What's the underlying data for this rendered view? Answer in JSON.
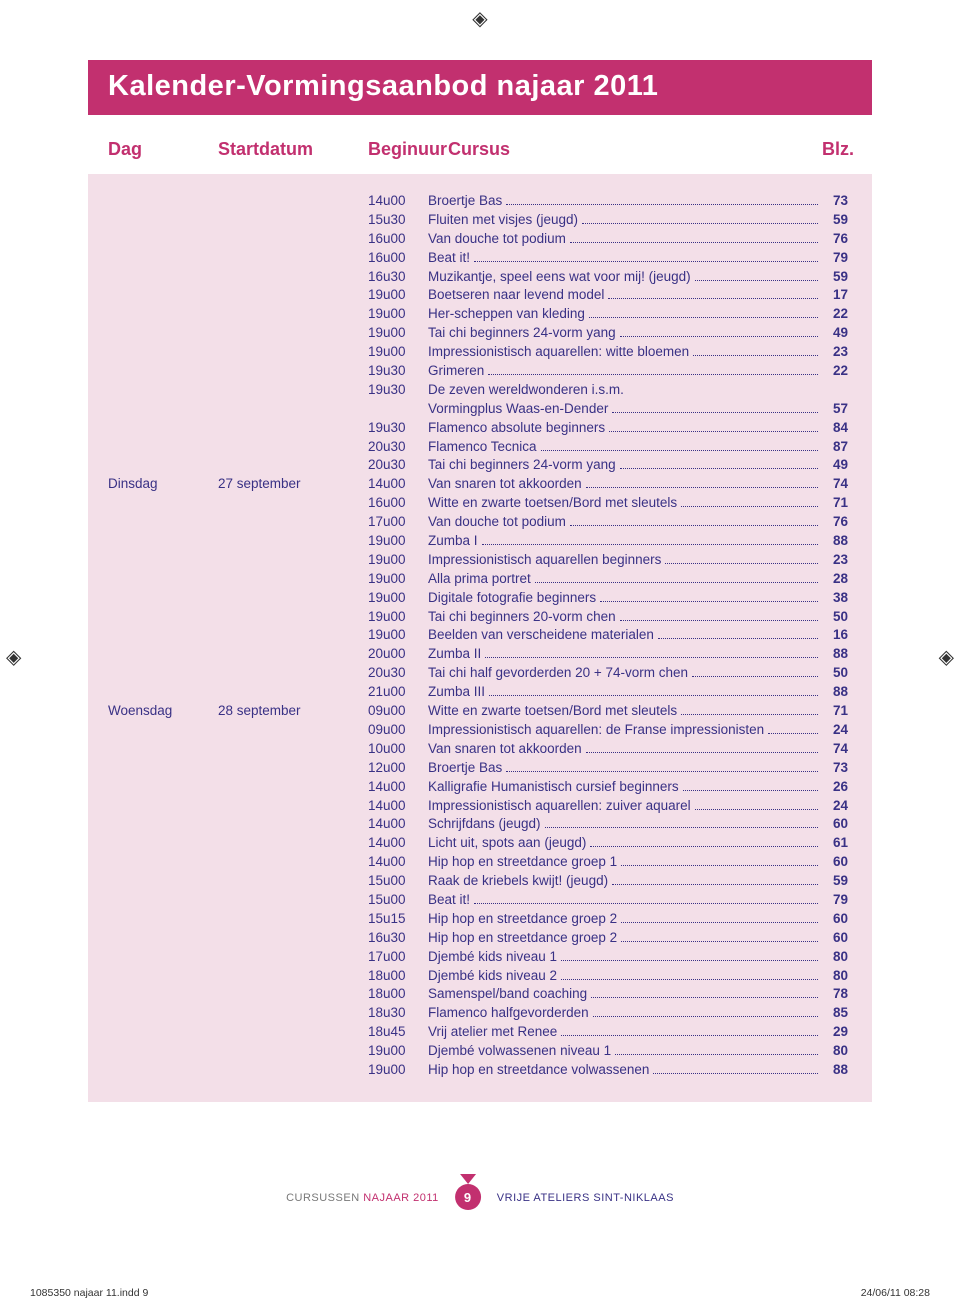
{
  "title": "Kalender-Vormingsaanbod najaar 2011",
  "columns": {
    "dag": "Dag",
    "startdatum": "Startdatum",
    "beginuur": "Beginuur",
    "cursus": "Cursus",
    "blz": "Blz."
  },
  "rows": [
    {
      "day": "",
      "date": "",
      "time": "14u00",
      "course": "Broertje Bas",
      "page": "73"
    },
    {
      "day": "",
      "date": "",
      "time": "15u30",
      "course": "Fluiten met visjes (jeugd)",
      "page": "59"
    },
    {
      "day": "",
      "date": "",
      "time": "16u00",
      "course": "Van douche tot podium",
      "page": "76"
    },
    {
      "day": "",
      "date": "",
      "time": "16u00",
      "course": "Beat it!",
      "page": "79"
    },
    {
      "day": "",
      "date": "",
      "time": "16u30",
      "course": "Muzikantje, speel eens wat voor mij! (jeugd)",
      "page": "59"
    },
    {
      "day": "",
      "date": "",
      "time": "19u00",
      "course": "Boetseren naar levend model",
      "page": "17"
    },
    {
      "day": "",
      "date": "",
      "time": "19u00",
      "course": "Her-scheppen van kleding",
      "page": "22"
    },
    {
      "day": "",
      "date": "",
      "time": "19u00",
      "course": "Tai chi beginners 24-vorm yang",
      "page": "49"
    },
    {
      "day": "",
      "date": "",
      "time": "19u00",
      "course": "Impressionistisch aquarellen: witte bloemen",
      "page": "23"
    },
    {
      "day": "",
      "date": "",
      "time": "19u30",
      "course": "Grimeren",
      "page": "22"
    },
    {
      "day": "",
      "date": "",
      "time": "19u30",
      "course": "De zeven wereldwonderen i.s.m.",
      "no_page": true
    },
    {
      "day": "",
      "date": "",
      "time": "",
      "course": "Vormingplus Waas-en-Dender",
      "page": "57",
      "cont": true
    },
    {
      "day": "",
      "date": "",
      "time": "19u30",
      "course": "Flamenco absolute beginners",
      "page": "84"
    },
    {
      "day": "",
      "date": "",
      "time": "20u30",
      "course": "Flamenco Tecnica",
      "page": "87"
    },
    {
      "day": "",
      "date": "",
      "time": "20u30",
      "course": "Tai chi beginners 24-vorm yang",
      "page": "49"
    },
    {
      "day": "Dinsdag",
      "date": "27 september",
      "time": "14u00",
      "course": "Van snaren tot akkoorden",
      "page": "74"
    },
    {
      "day": "",
      "date": "",
      "time": "16u00",
      "course": "Witte en zwarte toetsen/Bord met sleutels",
      "page": "71"
    },
    {
      "day": "",
      "date": "",
      "time": "17u00",
      "course": "Van douche tot podium",
      "page": "76"
    },
    {
      "day": "",
      "date": "",
      "time": "19u00",
      "course": "Zumba I",
      "page": "88"
    },
    {
      "day": "",
      "date": "",
      "time": "19u00",
      "course": "Impressionistisch aquarellen beginners",
      "page": "23"
    },
    {
      "day": "",
      "date": "",
      "time": "19u00",
      "course": "Alla prima portret",
      "page": "28"
    },
    {
      "day": "",
      "date": "",
      "time": "19u00",
      "course": "Digitale fotografie beginners",
      "page": "38"
    },
    {
      "day": "",
      "date": "",
      "time": "19u00",
      "course": "Tai chi beginners 20-vorm chen",
      "page": "50"
    },
    {
      "day": "",
      "date": "",
      "time": "19u00",
      "course": "Beelden van verscheidene materialen",
      "page": "16"
    },
    {
      "day": "",
      "date": "",
      "time": "20u00",
      "course": "Zumba II",
      "page": "88"
    },
    {
      "day": "",
      "date": "",
      "time": "20u30",
      "course": "Tai chi half gevorderden 20 + 74-vorm chen",
      "page": "50"
    },
    {
      "day": "",
      "date": "",
      "time": "21u00",
      "course": "Zumba III",
      "page": "88"
    },
    {
      "day": "Woensdag",
      "date": "28 september",
      "time": "09u00",
      "course": "Witte en zwarte toetsen/Bord met sleutels",
      "page": "71"
    },
    {
      "day": "",
      "date": "",
      "time": "09u00",
      "course": "Impressionistisch aquarellen: de Franse impressionisten",
      "page": "24"
    },
    {
      "day": "",
      "date": "",
      "time": "10u00",
      "course": "Van snaren tot akkoorden",
      "page": "74"
    },
    {
      "day": "",
      "date": "",
      "time": "12u00",
      "course": "Broertje Bas",
      "page": "73"
    },
    {
      "day": "",
      "date": "",
      "time": "14u00",
      "course": "Kalligrafie Humanistisch cursief beginners",
      "page": "26"
    },
    {
      "day": "",
      "date": "",
      "time": "14u00",
      "course": "Impressionistisch aquarellen: zuiver aquarel",
      "page": "24"
    },
    {
      "day": "",
      "date": "",
      "time": "14u00",
      "course": "Schrijfdans (jeugd)",
      "page": "60"
    },
    {
      "day": "",
      "date": "",
      "time": "14u00",
      "course": "Licht uit, spots aan (jeugd)",
      "page": "61"
    },
    {
      "day": "",
      "date": "",
      "time": "14u00",
      "course": "Hip hop en streetdance groep 1",
      "page": "60"
    },
    {
      "day": "",
      "date": "",
      "time": "15u00",
      "course": "Raak de kriebels kwijt! (jeugd)",
      "page": "59"
    },
    {
      "day": "",
      "date": "",
      "time": "15u00",
      "course": "Beat it!",
      "page": "79"
    },
    {
      "day": "",
      "date": "",
      "time": "15u15",
      "course": "Hip hop en streetdance groep 2",
      "page": "60"
    },
    {
      "day": "",
      "date": "",
      "time": "16u30",
      "course": "Hip hop en streetdance groep 2",
      "page": "60"
    },
    {
      "day": "",
      "date": "",
      "time": "17u00",
      "course": "Djembé kids niveau 1",
      "page": "80"
    },
    {
      "day": "",
      "date": "",
      "time": "18u00",
      "course": "Djembé kids niveau 2",
      "page": "80"
    },
    {
      "day": "",
      "date": "",
      "time": "18u00",
      "course": "Samenspel/band coaching",
      "page": "78"
    },
    {
      "day": "",
      "date": "",
      "time": "18u30",
      "course": "Flamenco halfgevorderden",
      "page": "85"
    },
    {
      "day": "",
      "date": "",
      "time": "18u45",
      "course": "Vrij atelier met Renee",
      "page": "29"
    },
    {
      "day": "",
      "date": "",
      "time": "19u00",
      "course": "Djembé volwassenen niveau 1",
      "page": "80"
    },
    {
      "day": "",
      "date": "",
      "time": "19u00",
      "course": "Hip hop en streetdance volwassenen",
      "page": "88"
    }
  ],
  "footer": {
    "left_plain": "CURSUSSEN ",
    "left_accent": "NAJAAR 2011",
    "page_number": "9",
    "right": "VRIJE ATELIERS SINT-NIKLAAS"
  },
  "print": {
    "file": "1085350 najaar 11.indd   9",
    "stamp": "24/06/11   08:28"
  },
  "colors": {
    "brand": "#c2306f",
    "text": "#393185",
    "panel": "#f3dfe8"
  }
}
